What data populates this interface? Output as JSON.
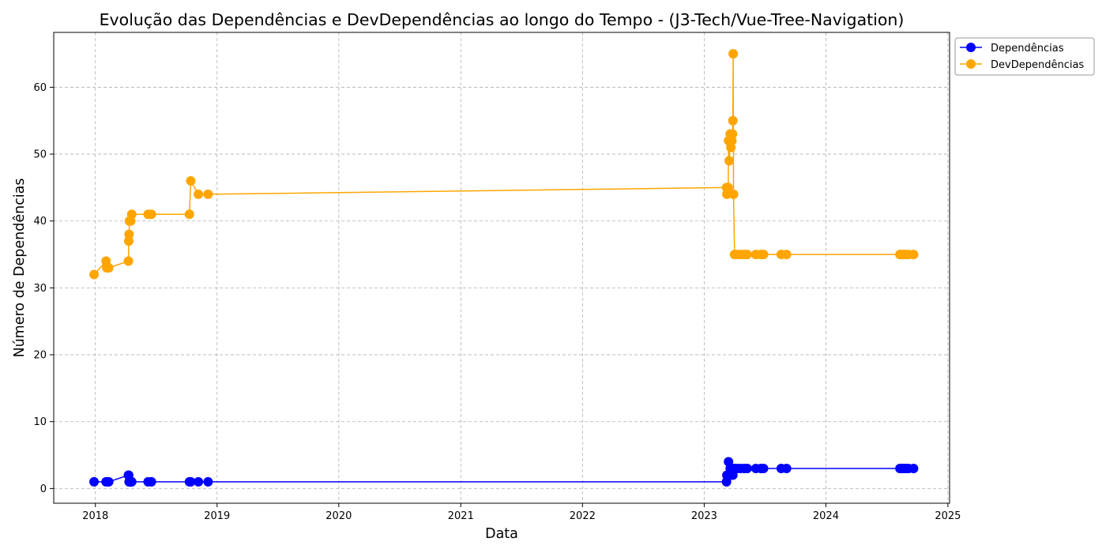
{
  "chart_data": {
    "type": "line",
    "title": "Evolução das Dependências e DevDependências ao longo do Tempo - (J3-Tech/Vue-Tree-Navigation)",
    "xlabel": "Data",
    "ylabel": "Número de Dependências",
    "x_ticks": [
      "2018",
      "2019",
      "2020",
      "2021",
      "2022",
      "2023",
      "2024",
      "2025"
    ],
    "y_ticks": [
      "0",
      "10",
      "20",
      "30",
      "40",
      "50",
      "60"
    ],
    "xlim": [
      "2017-08-29",
      "2025-01-06"
    ],
    "ylim": [
      -2.2,
      68.2
    ],
    "grid": true,
    "legend_position": "outside-top-right",
    "series": [
      {
        "name": "Dependências",
        "color": "#0000ff",
        "points": [
          [
            "2017-12-28",
            1
          ],
          [
            "2018-02-02",
            1
          ],
          [
            "2018-02-08",
            1
          ],
          [
            "2018-02-10",
            1
          ],
          [
            "2018-04-10",
            2
          ],
          [
            "2018-04-11",
            2
          ],
          [
            "2018-04-12",
            1
          ],
          [
            "2018-04-13",
            1
          ],
          [
            "2018-04-17",
            1
          ],
          [
            "2018-04-18",
            1
          ],
          [
            "2018-04-19",
            1
          ],
          [
            "2018-04-20",
            1
          ],
          [
            "2018-06-08",
            1
          ],
          [
            "2018-06-18",
            1
          ],
          [
            "2018-10-10",
            1
          ],
          [
            "2018-10-14",
            1
          ],
          [
            "2018-11-06",
            1
          ],
          [
            "2018-12-05",
            1
          ],
          [
            "2023-03-09",
            1
          ],
          [
            "2023-03-10",
            2
          ],
          [
            "2023-03-15",
            4
          ],
          [
            "2023-03-20",
            3
          ],
          [
            "2023-03-25",
            2
          ],
          [
            "2023-03-28",
            2
          ],
          [
            "2023-03-30",
            3
          ],
          [
            "2023-04-02",
            3
          ],
          [
            "2023-04-10",
            3
          ],
          [
            "2023-04-20",
            3
          ],
          [
            "2023-05-01",
            3
          ],
          [
            "2023-05-10",
            3
          ],
          [
            "2023-06-05",
            3
          ],
          [
            "2023-06-20",
            3
          ],
          [
            "2023-06-28",
            3
          ],
          [
            "2023-08-20",
            3
          ],
          [
            "2023-09-05",
            3
          ],
          [
            "2024-08-10",
            3
          ],
          [
            "2024-08-16",
            3
          ],
          [
            "2024-08-22",
            3
          ],
          [
            "2024-08-28",
            3
          ],
          [
            "2024-09-05",
            3
          ],
          [
            "2024-09-20",
            3
          ]
        ]
      },
      {
        "name": "DevDependências",
        "color": "#ffa500",
        "points": [
          [
            "2017-12-28",
            32
          ],
          [
            "2018-02-02",
            34
          ],
          [
            "2018-02-04",
            33
          ],
          [
            "2018-02-10",
            33
          ],
          [
            "2018-04-10",
            34
          ],
          [
            "2018-04-11",
            37
          ],
          [
            "2018-04-12",
            38
          ],
          [
            "2018-04-13",
            40
          ],
          [
            "2018-04-17",
            40
          ],
          [
            "2018-04-20",
            41
          ],
          [
            "2018-06-08",
            41
          ],
          [
            "2018-06-18",
            41
          ],
          [
            "2018-10-10",
            41
          ],
          [
            "2018-10-14",
            46
          ],
          [
            "2018-11-06",
            44
          ],
          [
            "2018-12-05",
            44
          ],
          [
            "2023-03-09",
            45
          ],
          [
            "2023-03-10",
            44
          ],
          [
            "2023-03-14",
            45
          ],
          [
            "2023-03-15",
            52
          ],
          [
            "2023-03-17",
            49
          ],
          [
            "2023-03-20",
            53
          ],
          [
            "2023-03-22",
            51
          ],
          [
            "2023-03-25",
            52
          ],
          [
            "2023-03-27",
            53
          ],
          [
            "2023-03-28",
            55
          ],
          [
            "2023-03-29",
            65
          ],
          [
            "2023-03-30",
            44
          ],
          [
            "2023-04-02",
            35
          ],
          [
            "2023-04-10",
            35
          ],
          [
            "2023-04-20",
            35
          ],
          [
            "2023-05-01",
            35
          ],
          [
            "2023-05-10",
            35
          ],
          [
            "2023-06-05",
            35
          ],
          [
            "2023-06-20",
            35
          ],
          [
            "2023-06-28",
            35
          ],
          [
            "2023-08-20",
            35
          ],
          [
            "2023-09-05",
            35
          ],
          [
            "2024-08-10",
            35
          ],
          [
            "2024-08-16",
            35
          ],
          [
            "2024-08-22",
            35
          ],
          [
            "2024-08-28",
            35
          ],
          [
            "2024-09-05",
            35
          ],
          [
            "2024-09-20",
            35
          ]
        ]
      }
    ]
  }
}
